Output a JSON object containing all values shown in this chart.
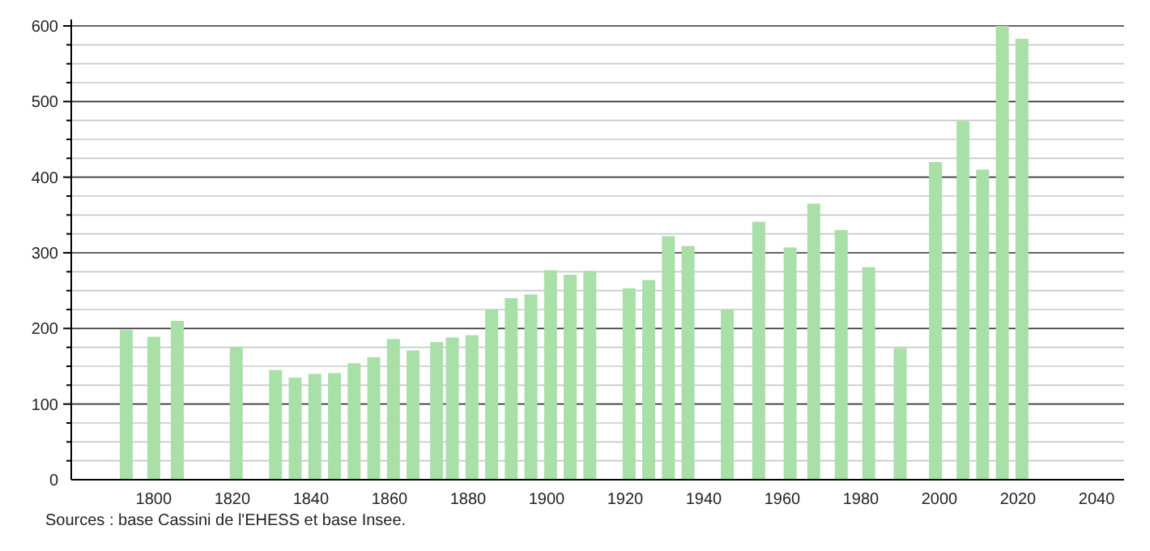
{
  "chart_data": {
    "type": "bar",
    "x": [
      1793,
      1800,
      1806,
      1821,
      1831,
      1836,
      1841,
      1846,
      1851,
      1856,
      1861,
      1866,
      1872,
      1876,
      1881,
      1886,
      1891,
      1896,
      1901,
      1906,
      1911,
      1921,
      1926,
      1931,
      1936,
      1946,
      1954,
      1962,
      1968,
      1975,
      1982,
      1990,
      1999,
      2006,
      2011,
      2016,
      2021
    ],
    "values": [
      198,
      189,
      210,
      175,
      145,
      135,
      140,
      141,
      154,
      162,
      186,
      171,
      182,
      188,
      191,
      225,
      240,
      245,
      277,
      271,
      276,
      253,
      264,
      322,
      309,
      225,
      341,
      307,
      365,
      330,
      281,
      174,
      420,
      474,
      410,
      600,
      583
    ],
    "color": "#a8e0a8",
    "xlim": [
      1779,
      2047
    ],
    "xticks": [
      1800,
      1820,
      1840,
      1860,
      1880,
      1900,
      1920,
      1940,
      1960,
      1980,
      2000,
      2020,
      2040
    ],
    "ylim": [
      0,
      600
    ],
    "yticks": [
      0,
      {
        "value": 25,
        "label": null
      },
      {
        "value": 50,
        "label": null
      },
      {
        "value": 75,
        "label": null
      },
      100,
      {
        "value": 125,
        "label": null
      },
      {
        "value": 150,
        "label": null
      },
      {
        "value": 175,
        "label": null
      },
      200,
      {
        "value": 225,
        "label": null
      },
      {
        "value": 250,
        "label": null
      },
      {
        "value": 275,
        "label": null
      },
      300,
      {
        "value": 325,
        "label": null
      },
      {
        "value": 350,
        "label": null
      },
      {
        "value": 375,
        "label": null
      },
      400,
      {
        "value": 425,
        "label": null
      },
      {
        "value": 450,
        "label": null
      },
      {
        "value": 475,
        "label": null
      },
      500,
      {
        "value": 525,
        "label": null
      },
      {
        "value": 550,
        "label": null
      },
      {
        "value": 575,
        "label": null
      },
      600
    ],
    "grid": "y",
    "annotations": [
      "Sources : base Cassini de l'EHESS et base Insee."
    ]
  }
}
